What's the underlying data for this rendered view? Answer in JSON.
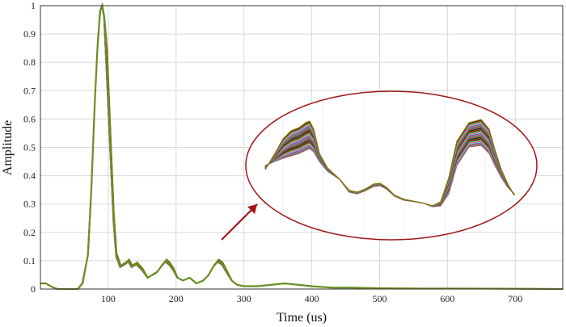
{
  "chart_data": {
    "type": "line",
    "title": "",
    "xlabel": "Time (us)",
    "ylabel": "Amplitude",
    "xlim": [
      0,
      770
    ],
    "ylim": [
      0,
      1
    ],
    "x_ticks": [
      100,
      200,
      300,
      400,
      500,
      600,
      700
    ],
    "y_ticks": [
      0,
      0.1,
      0.2,
      0.3,
      0.4,
      0.5,
      0.6,
      0.7,
      0.8,
      0.9,
      1
    ],
    "grid": true,
    "series_count_approx": 40,
    "series_colors": [
      "#e6194b",
      "#3cb44b",
      "#4363d8",
      "#f58231",
      "#911eb4",
      "#46f0f0",
      "#f032e6",
      "#bcf60c",
      "#008080",
      "#9a6324",
      "#800000",
      "#808000",
      "#000075",
      "#6b8e23"
    ],
    "envelope_color": "#6b8e23",
    "representative_waveform": {
      "x": [
        0,
        8,
        15,
        25,
        40,
        55,
        62,
        70,
        75,
        80,
        84,
        88,
        91,
        94,
        98,
        103,
        108,
        112,
        118,
        125,
        130,
        135,
        142,
        150,
        158,
        165,
        172,
        178,
        185,
        190,
        196,
        202,
        210,
        220,
        230,
        240,
        248,
        255,
        262,
        268,
        275,
        282,
        290,
        300,
        320,
        340,
        360,
        380,
        400,
        430,
        460,
        500,
        560,
        620,
        700,
        770
      ],
      "y": [
        0.02,
        0.02,
        0.01,
        0.0,
        0.0,
        0.0,
        0.02,
        0.12,
        0.35,
        0.65,
        0.85,
        0.98,
        1.0,
        0.96,
        0.8,
        0.52,
        0.25,
        0.12,
        0.08,
        0.09,
        0.1,
        0.08,
        0.09,
        0.07,
        0.04,
        0.05,
        0.06,
        0.08,
        0.1,
        0.09,
        0.07,
        0.04,
        0.03,
        0.04,
        0.02,
        0.03,
        0.05,
        0.08,
        0.1,
        0.09,
        0.06,
        0.03,
        0.015,
        0.01,
        0.01,
        0.015,
        0.02,
        0.015,
        0.01,
        0.005,
        0.005,
        0.003,
        0.002,
        0.002,
        0.001,
        0.0
      ]
    },
    "annotation": {
      "type": "zoom-ellipse",
      "color": "#a01818",
      "arrow": true,
      "inset_series_count": 40,
      "inset_spread": [
        0.3,
        0.8
      ]
    }
  }
}
